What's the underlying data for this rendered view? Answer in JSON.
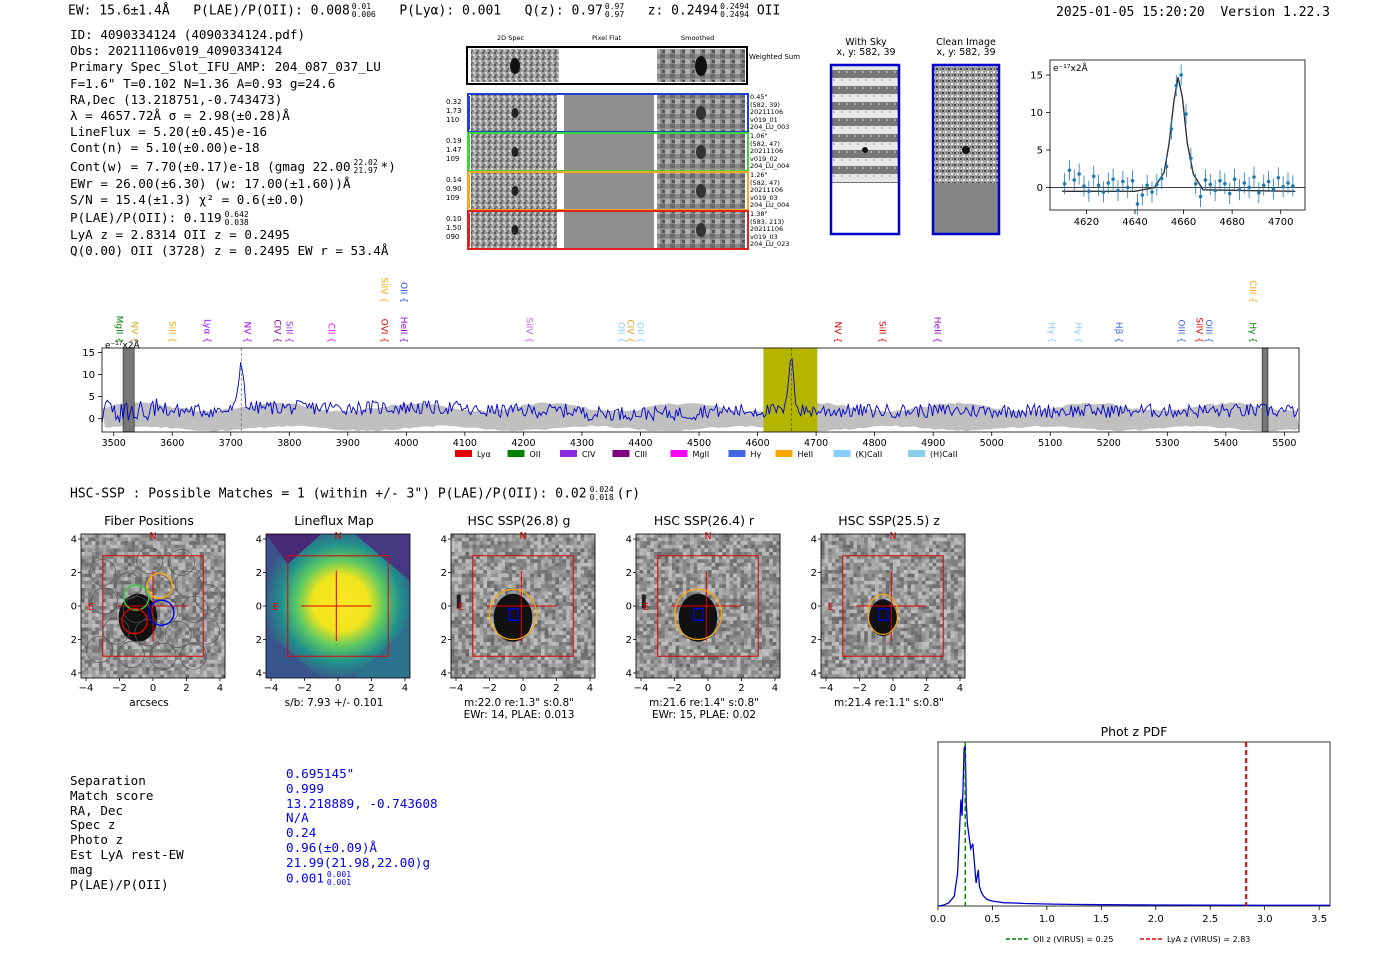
{
  "header": {
    "ew": "EW: 15.6±1.4Å",
    "plae": "P(LAE)/P(OII): 0.008",
    "plae_hi": "0.01",
    "plae_lo": "0.006",
    "plya": "P(Lyα): 0.001",
    "qz": "Q(z): 0.97",
    "qz_hi": "0.97",
    "qz_lo": "0.97",
    "z": "z: 0.2494",
    "z_hi": "0.2494",
    "z_lo": "0.2494",
    "line": "OII",
    "timestamp": "2025-01-05 15:20:20",
    "version": "Version 1.22.3"
  },
  "info": {
    "l1": "ID: 4090334124 (4090334124.pdf)",
    "l2": "Obs: 20211106v019_4090334124",
    "l3": "Primary Spec_Slot_IFU_AMP: 204_087_037_LU",
    "l4": "F=1.6\"  T=0.102  N=1.36  A=0.93  g=24.6",
    "l5": "RA,Dec (13.218751,-0.743473)",
    "l6": "λ = 4657.72Å  σ = 2.98(±0.28)Å",
    "l7": "LineFlux = 5.20(±0.45)e-16",
    "l8": "Cont(n) = 5.10(±0.00)e-18",
    "l9": "Cont(w) = 7.70(±0.17)e-18 (gmag 22.00",
    "l9_hi": "22.02",
    "l9_lo": "21.97",
    "l9_tail": "*)",
    "l10": "EWr = 26.00(±6.30) (w: 17.00(±1.60))Å",
    "l11": "S/N = 15.4(±1.3)  χ² = 0.6(±0.0)",
    "l12": "P(LAE)/P(OII): 0.119",
    "l12_hi": "0.642",
    "l12_lo": "0.038",
    "l13": "LyA z = 2.8314  OII z = 0.2495",
    "l14": "Q(0.00) OII (3728) z = 0.2495  EW r = 53.4Å"
  },
  "cutouts": {
    "col_labels": [
      "2D Spec",
      "Pixel Flat",
      "Smoothed"
    ],
    "weighted_label": "Weighted Sum",
    "rows": [
      {
        "w": [
          "0.32",
          "1.73",
          "110"
        ],
        "meta": [
          "0.45\"",
          "(582, 39)",
          "20211106",
          "v019_01",
          "204_LU_003"
        ],
        "color": "#1f3fd6"
      },
      {
        "w": [
          "0.19",
          "1.47",
          "109"
        ],
        "meta": [
          "1.06\"",
          "(582, 47)",
          "20211106",
          "v019_02",
          "204_LU_004"
        ],
        "color": "#3ad63a"
      },
      {
        "w": [
          "0.14",
          "0.90",
          "109"
        ],
        "meta": [
          "1.26\"",
          "(582, 47)",
          "20211106",
          "v019_03",
          "204_LU_004"
        ],
        "color": "#f5a623"
      },
      {
        "w": [
          "0.10",
          "1.50",
          "090"
        ],
        "meta": [
          "1.38\"",
          "(583, 213)",
          "20211106",
          "v019_03",
          "204_LU_023"
        ],
        "color": "#e0221a"
      }
    ]
  },
  "sky": {
    "with_sky_title": "With Sky",
    "with_sky_coords": "x, y: 582, 39",
    "clean_title": "Clean Image",
    "clean_coords": "x, y: 582, 39"
  },
  "zoom_chart": {
    "unit": "e⁻¹⁷x2Å"
  },
  "full_spectrum": {
    "unit": "e⁻¹⁷x2Å",
    "lines": [
      {
        "name": "MgII",
        "x": 3500,
        "c": "#008000",
        "h": 1
      },
      {
        "name": "NV",
        "x": 3525,
        "c": "#daa520",
        "h": 1
      },
      {
        "name": "SiII",
        "x": 3590,
        "c": "#ffa500",
        "h": 1
      },
      {
        "name": "Lyα",
        "x": 3650,
        "c": "#a000ff",
        "h": 1
      },
      {
        "name": "NV",
        "x": 3718,
        "c": "#a000ff",
        "h": 1
      },
      {
        "name": "CIV",
        "x": 3770,
        "c": "#800080",
        "h": 1
      },
      {
        "name": "SiII",
        "x": 3790,
        "c": "#8a2be2",
        "h": 1
      },
      {
        "name": "CII",
        "x": 3862,
        "c": "#ff00ff",
        "h": 1
      },
      {
        "name": "SiIV",
        "x": 3952,
        "c": "#ffa500",
        "h": 2
      },
      {
        "name": "OVI",
        "x": 3952,
        "c": "#e00000",
        "h": 1
      },
      {
        "name": "OII",
        "x": 3986,
        "c": "#2050ff",
        "h": 2
      },
      {
        "name": "HeII",
        "x": 3986,
        "c": "#9400d3",
        "h": 1
      },
      {
        "name": "SiIV",
        "x": 4200,
        "c": "#c060e0",
        "h": 1
      },
      {
        "name": "OII",
        "x": 4357,
        "c": "#87cefa",
        "h": 1
      },
      {
        "name": "CIV",
        "x": 4373,
        "c": "#daa520",
        "h": 1
      },
      {
        "name": "OII",
        "x": 4390,
        "c": "#87cefa",
        "h": 1
      },
      {
        "name": "NV",
        "x": 4727,
        "c": "#e00000",
        "h": 1
      },
      {
        "name": "SiII",
        "x": 4803,
        "c": "#e00000",
        "h": 1
      },
      {
        "name": "HeII",
        "x": 4897,
        "c": "#9400d3",
        "h": 1
      },
      {
        "name": "Hγ",
        "x": 5093,
        "c": "#87cefa",
        "h": 1
      },
      {
        "name": "Hγ",
        "x": 5138,
        "c": "#87cefa",
        "h": 1
      },
      {
        "name": "Hβ",
        "x": 5207,
        "c": "#4169e1",
        "h": 1
      },
      {
        "name": "OIII",
        "x": 5314,
        "c": "#4169e1",
        "h": 1
      },
      {
        "name": "SiIV",
        "x": 5345,
        "c": "#e00000",
        "h": 1
      },
      {
        "name": "OIII",
        "x": 5361,
        "c": "#4169e1",
        "h": 1
      },
      {
        "name": "CIII",
        "x": 5436,
        "c": "#ffa500",
        "h": 2
      },
      {
        "name": "Hγ",
        "x": 5436,
        "c": "#008000",
        "h": 1
      }
    ],
    "legend": [
      {
        "label": "Lyα",
        "c": "#e00000"
      },
      {
        "label": "OII",
        "c": "#008000"
      },
      {
        "label": "CIV",
        "c": "#8a2be2"
      },
      {
        "label": "CIII",
        "c": "#800080"
      },
      {
        "label": "MgII",
        "c": "#ff00ff"
      },
      {
        "label": "Hγ",
        "c": "#4169e1"
      },
      {
        "label": "HeII",
        "c": "#ffa500"
      },
      {
        "label": "(K)CaII",
        "c": "#87cefa"
      },
      {
        "label": "(H)CaII",
        "c": "#87ceeb"
      }
    ]
  },
  "hsc": {
    "summary": "HSC-SSP : Possible Matches = 1 (within +/- 3\")  P(LAE)/P(OII): 0.02",
    "summary_hi": "0.024",
    "summary_lo": "0.018",
    "summary_tail": "(r)",
    "panels": [
      {
        "title": "Fiber Positions",
        "cap": [
          "arcsecs"
        ]
      },
      {
        "title": "Lineflux Map",
        "cap": [
          "s/b: 7.93 +/- 0.101"
        ]
      },
      {
        "title": "HSC SSP(26.8) g",
        "cap": [
          "m:22.0  re:1.3\"  s:0.8\"",
          "EWr: 14, PLAE: 0.013"
        ]
      },
      {
        "title": "HSC SSP(26.4) r",
        "cap": [
          "m:21.6  re:1.4\"  s:0.8\"",
          "EWr: 15, PLAE: 0.02"
        ]
      },
      {
        "title": "HSC SSP(25.5) z",
        "cap": [
          "m:21.4  re:1.1\"  s:0.8\""
        ]
      }
    ],
    "compass_n": "N",
    "compass_e": "E"
  },
  "match_table": {
    "rows": [
      {
        "label": "Separation",
        "value": "0.695145\""
      },
      {
        "label": "Match score",
        "value": "0.999"
      },
      {
        "label": "RA, Dec",
        "value": "13.218889, -0.743608"
      },
      {
        "label": "Spec z",
        "value": "N/A"
      },
      {
        "label": "Photo z",
        "value": "0.24"
      },
      {
        "label": "Est LyA rest-EW",
        "value": "0.96(±0.09)Å"
      },
      {
        "label": "mag",
        "value": "21.99(21.98,22.00)g"
      },
      {
        "label": "P(LAE)/P(OII)",
        "value": "0.001"
      }
    ],
    "plae_hi": "0.001",
    "plae_lo": "0.001"
  },
  "chart_data": [
    {
      "type": "line",
      "title": "",
      "xlabel": "",
      "ylabel": "e⁻¹⁷x2Å",
      "xlim": [
        4605,
        4710
      ],
      "ylim": [
        -3,
        17
      ],
      "xticks": [
        4620,
        4640,
        4660,
        4680,
        4700
      ],
      "yticks": [
        0,
        5,
        10,
        15
      ],
      "series": [
        {
          "name": "fit",
          "color": "#333333",
          "x": [
            4610,
            4640,
            4648,
            4652,
            4654,
            4656,
            4657.7,
            4659.5,
            4661.5,
            4664,
            4668,
            4706
          ],
          "y": [
            -0.5,
            -0.5,
            0.0,
            2.0,
            5.8,
            11.5,
            14.7,
            12.0,
            6.0,
            1.8,
            -0.3,
            -0.5
          ]
        },
        {
          "name": "data",
          "color": "#1f77b4",
          "x": [
            4611,
            4613,
            4615,
            4617,
            4619,
            4621,
            4623,
            4625,
            4627,
            4629,
            4631,
            4633,
            4635,
            4637,
            4639,
            4641,
            4643,
            4645,
            4647,
            4649,
            4651,
            4653,
            4655,
            4657,
            4659,
            4661,
            4663,
            4665,
            4667,
            4669,
            4671,
            4673,
            4675,
            4677,
            4679,
            4681,
            4683,
            4685,
            4687,
            4689,
            4691,
            4693,
            4695,
            4697,
            4699,
            4701,
            4703,
            4705
          ],
          "y": [
            0.5,
            2.3,
            1.0,
            1.8,
            0.2,
            -0.5,
            1.5,
            0.3,
            -0.6,
            0.6,
            1.1,
            -0.4,
            0.8,
            0.0,
            0.9,
            -2.2,
            -1.0,
            0.3,
            -0.6,
            0.4,
            1.2,
            2.8,
            7.8,
            13.6,
            15.0,
            9.8,
            3.9,
            0.5,
            -1.2,
            1.0,
            0.4,
            -0.4,
            0.9,
            0.5,
            -0.8,
            1.1,
            -0.3,
            0.6,
            0.0,
            1.4,
            -0.7,
            0.3,
            0.8,
            -0.2,
            1.3,
            0.1,
            0.6,
            0.2
          ]
        }
      ]
    },
    {
      "type": "line",
      "title": "",
      "xlabel": "",
      "ylabel": "e⁻¹⁷x2Å",
      "xlim": [
        3480,
        5525
      ],
      "ylim": [
        -3,
        16
      ],
      "xticks": [
        3500,
        3600,
        3700,
        3800,
        3900,
        4000,
        4100,
        4200,
        4300,
        4400,
        4500,
        4600,
        4700,
        4800,
        4900,
        5000,
        5100,
        5200,
        5300,
        5400,
        5500
      ],
      "yticks": [
        0,
        5,
        10,
        15
      ],
      "highlight_range": [
        4610,
        4702
      ],
      "masked_ranges": [
        [
          3516,
          3535
        ],
        [
          5462,
          5472
        ]
      ],
      "peaks": [
        {
          "x": 3718,
          "y": 12.5
        },
        {
          "x": 4657.7,
          "y": 15.2
        }
      ],
      "series": [
        {
          "name": "spectrum",
          "color": "#0000cc",
          "baseline": 2.0,
          "noise": 1.6,
          "note": "noisy continuum ~1-3 with emission peaks"
        }
      ]
    },
    {
      "type": "line",
      "title": "Phot z PDF",
      "xlabel": "",
      "ylabel": "",
      "xlim": [
        0.0,
        3.6
      ],
      "ylim": [
        0,
        1.0
      ],
      "xticks": [
        0.0,
        0.5,
        1.0,
        1.5,
        2.0,
        2.5,
        3.0,
        3.5
      ],
      "series": [
        {
          "name": "pdf",
          "color": "#0000cc",
          "x": [
            0.0,
            0.05,
            0.1,
            0.15,
            0.18,
            0.2,
            0.21,
            0.22,
            0.23,
            0.24,
            0.25,
            0.26,
            0.27,
            0.28,
            0.3,
            0.32,
            0.35,
            0.37,
            0.38,
            0.4,
            0.42,
            0.45,
            0.5,
            0.55,
            0.6,
            0.7,
            0.8,
            1.0,
            1.2,
            1.5,
            1.8,
            2.0,
            2.5,
            3.0,
            3.6
          ],
          "y": [
            0.0,
            0.005,
            0.02,
            0.06,
            0.2,
            0.5,
            0.65,
            0.55,
            0.7,
            0.96,
            0.98,
            0.62,
            0.5,
            0.45,
            0.35,
            0.38,
            0.14,
            0.22,
            0.12,
            0.08,
            0.06,
            0.04,
            0.03,
            0.025,
            0.02,
            0.018,
            0.015,
            0.012,
            0.01,
            0.008,
            0.007,
            0.006,
            0.005,
            0.004,
            0.004
          ]
        }
      ],
      "vlines": [
        {
          "label": "OII z (VIRUS) = 0.25",
          "x": 0.25,
          "color": "#008000"
        },
        {
          "label": "LyA z (VIRUS) = 2.83",
          "x": 2.83,
          "color": "#e00000"
        }
      ]
    }
  ]
}
